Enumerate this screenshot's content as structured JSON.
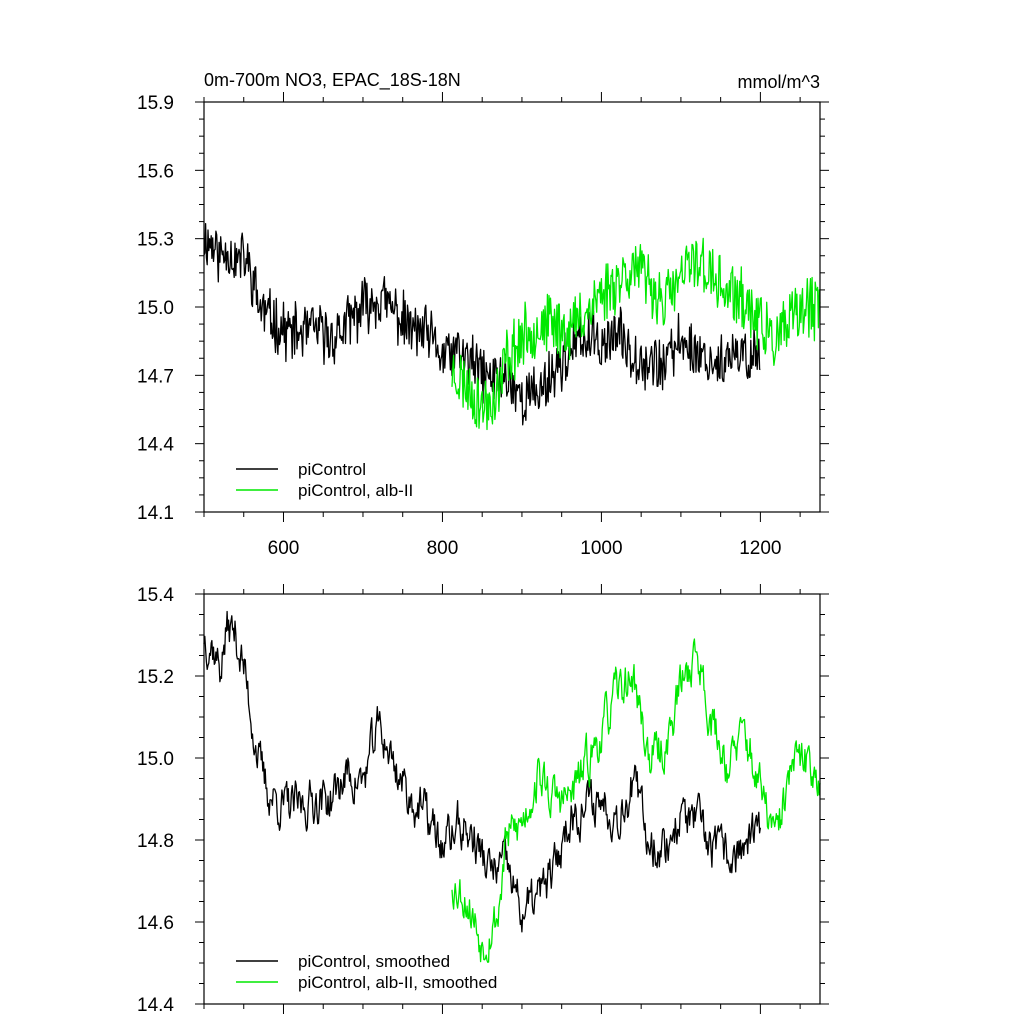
{
  "chart_data": [
    {
      "type": "line",
      "title": "0m-700m NO3, EPAC_18S-18N",
      "units_label": "mmol/m^3",
      "xlim": [
        500,
        1275
      ],
      "ylim": [
        14.1,
        15.9
      ],
      "x_ticks": [
        600,
        800,
        1000,
        1200
      ],
      "x_tick_labels": [
        "600",
        "800",
        "1000",
        "1200"
      ],
      "y_ticks": [
        14.1,
        14.4,
        14.7,
        15.0,
        15.3,
        15.6,
        15.9
      ],
      "y_tick_labels": [
        "14.1",
        "14.4",
        "14.7",
        "15.0",
        "15.3",
        "15.6",
        "15.9"
      ],
      "legend_position": "bottom-left",
      "series": [
        {
          "name": "piControl",
          "color": "#000000",
          "x": [
            500,
            510,
            520,
            530,
            540,
            550,
            560,
            570,
            580,
            590,
            600,
            620,
            640,
            660,
            680,
            700,
            720,
            740,
            760,
            780,
            800,
            820,
            840,
            860,
            880,
            900,
            920,
            940,
            960,
            980,
            1000,
            1020,
            1040,
            1060,
            1080,
            1100,
            1120,
            1140,
            1160,
            1180,
            1200
          ],
          "y": [
            15.3,
            15.28,
            15.22,
            15.26,
            15.2,
            15.22,
            15.14,
            15.0,
            14.96,
            14.93,
            14.9,
            14.88,
            14.9,
            14.86,
            14.92,
            15.0,
            15.04,
            14.98,
            14.9,
            14.88,
            14.78,
            14.8,
            14.74,
            14.68,
            14.7,
            14.6,
            14.62,
            14.72,
            14.8,
            14.86,
            14.84,
            14.88,
            14.8,
            14.76,
            14.74,
            14.86,
            14.8,
            14.76,
            14.76,
            14.78,
            14.8
          ],
          "noise": 0.11
        },
        {
          "name": "piControl, alb-II",
          "color": "#00e800",
          "x": [
            812,
            830,
            850,
            870,
            880,
            900,
            920,
            940,
            960,
            980,
            1000,
            1020,
            1040,
            1060,
            1080,
            1100,
            1120,
            1140,
            1160,
            1180,
            1200,
            1220,
            1240,
            1260,
            1275
          ],
          "y": [
            14.72,
            14.66,
            14.56,
            14.62,
            14.78,
            14.86,
            14.92,
            14.92,
            14.9,
            14.98,
            15.06,
            15.12,
            15.18,
            15.1,
            15.02,
            15.12,
            15.22,
            15.12,
            15.06,
            15.02,
            14.92,
            14.84,
            14.94,
            15.0,
            14.98
          ],
          "noise": 0.12
        }
      ]
    },
    {
      "type": "line",
      "xlim": [
        500,
        1275
      ],
      "ylim": [
        14.4,
        15.4
      ],
      "x_ticks": [
        600,
        800,
        1000,
        1200
      ],
      "y_ticks": [
        14.4,
        14.6,
        14.8,
        15.0,
        15.2,
        15.4
      ],
      "y_tick_labels": [
        "14.4",
        "14.6",
        "14.8",
        "15.0",
        "15.2",
        "15.4"
      ],
      "legend_position": "bottom-left",
      "series": [
        {
          "name": "piControl, smoothed",
          "color": "#000000",
          "x": [
            500,
            510,
            520,
            530,
            540,
            550,
            560,
            570,
            580,
            590,
            600,
            620,
            640,
            660,
            680,
            700,
            720,
            740,
            760,
            780,
            800,
            820,
            840,
            860,
            880,
            900,
            920,
            940,
            960,
            980,
            1000,
            1020,
            1040,
            1060,
            1080,
            1100,
            1120,
            1140,
            1160,
            1180,
            1200
          ],
          "y": [
            15.3,
            15.28,
            15.22,
            15.32,
            15.3,
            15.22,
            15.1,
            14.98,
            14.92,
            14.9,
            14.88,
            14.88,
            14.9,
            14.9,
            14.96,
            14.94,
            15.08,
            14.98,
            14.9,
            14.86,
            14.78,
            14.84,
            14.8,
            14.72,
            14.74,
            14.62,
            14.66,
            14.72,
            14.86,
            14.88,
            14.9,
            14.86,
            14.94,
            14.8,
            14.78,
            14.86,
            14.84,
            14.78,
            14.76,
            14.78,
            14.82
          ],
          "noise": 0.02
        },
        {
          "name": "piControl, alb-II, smoothed",
          "color": "#00e800",
          "x": [
            812,
            830,
            850,
            870,
            880,
            900,
            920,
            940,
            960,
            980,
            1000,
            1020,
            1040,
            1060,
            1080,
            1100,
            1120,
            1140,
            1160,
            1180,
            1200,
            1220,
            1240,
            1260,
            1275
          ],
          "y": [
            14.7,
            14.66,
            14.55,
            14.62,
            14.8,
            14.84,
            14.96,
            14.9,
            14.9,
            14.98,
            15.06,
            15.16,
            15.2,
            15.0,
            15.02,
            15.18,
            15.26,
            15.08,
            14.98,
            15.06,
            14.92,
            14.8,
            14.98,
            14.99,
            14.96
          ],
          "noise": 0.02
        }
      ]
    }
  ]
}
